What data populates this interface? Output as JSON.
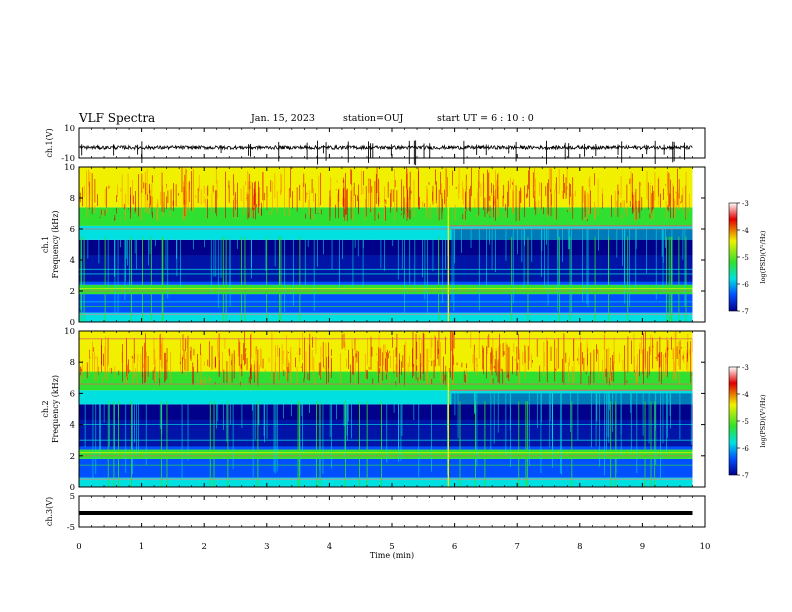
{
  "header": {
    "title": "VLF Spectra",
    "date": "Jan. 15, 2023",
    "station": "station=OUJ",
    "start": "start UT =  6 : 10 : 0"
  },
  "chart_data": [
    {
      "type": "line",
      "panel": "ch1-waveform",
      "ylabel": "ch.1(V)",
      "ylim": [
        -10,
        10
      ],
      "ytick_labels": [
        "10",
        "-10"
      ],
      "xlim": [
        0,
        10
      ],
      "baseline": -3
    },
    {
      "type": "heatmap",
      "panel": "ch1-spectrogram",
      "ylabel": "ch.1 Frequency (kHz)",
      "ylim": [
        0,
        10
      ],
      "ytick_labels": [
        "0",
        "2",
        "4",
        "6",
        "8",
        "10"
      ],
      "xlim": [
        0,
        10
      ],
      "data_end_min": 9.8
    },
    {
      "type": "heatmap",
      "panel": "ch2-spectrogram",
      "ylabel": "ch.2 Frequency (kHz)",
      "ylim": [
        0,
        10
      ],
      "ytick_labels": [
        "0",
        "2",
        "4",
        "6",
        "8",
        "10"
      ],
      "xlim": [
        0,
        10
      ],
      "data_end_min": 9.8
    },
    {
      "type": "line",
      "panel": "ch3-waveform",
      "ylabel": "ch.3(V)",
      "ylim": [
        -5,
        5
      ],
      "ytick_labels": [
        "5",
        "-5"
      ],
      "xlim": [
        0,
        10
      ],
      "values": [
        -0.5,
        -0.5
      ]
    }
  ],
  "xaxis": {
    "label": "Time (min)",
    "tick_labels": [
      "0",
      "1",
      "2",
      "3",
      "4",
      "5",
      "6",
      "7",
      "8",
      "9",
      "10"
    ]
  },
  "colorbar": {
    "label": "log(PSD)(V²/Hz)",
    "range": [
      -7,
      -3
    ],
    "tick_labels": [
      "-3",
      "-4",
      "-5",
      "-6",
      "-7"
    ]
  },
  "colors": {
    "low": "#00008b",
    "blue": "#0050ff",
    "cyan": "#00e0e0",
    "green": "#30e030",
    "yellow": "#f0f000",
    "red": "#e00000"
  }
}
